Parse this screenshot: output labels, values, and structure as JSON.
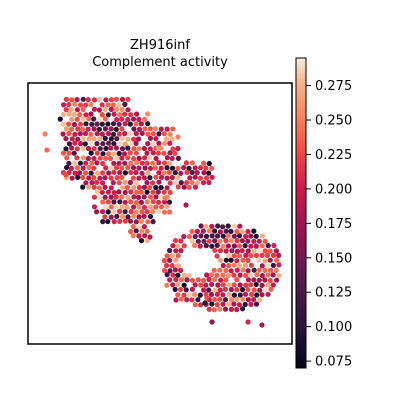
{
  "chart_data": {
    "type": "scatter",
    "title": "ZH916inf",
    "subtitle": "Complement activity",
    "xlabel": "",
    "ylabel": "",
    "colormap": "rocket",
    "color_range": [
      0.07,
      0.295
    ],
    "colorbar_ticks": [
      "0.275",
      "0.250",
      "0.225",
      "0.200",
      "0.175",
      "0.150",
      "0.125",
      "0.100",
      "0.075"
    ],
    "colorbar_tick_values": [
      0.275,
      0.25,
      0.225,
      0.2,
      0.175,
      0.15,
      0.125,
      0.1,
      0.075
    ],
    "axis_ticks_visible": false,
    "grid": false,
    "legend": "colorbar-right",
    "regions": [
      {
        "name": "upper-left tissue section",
        "x_range": [
          0.14,
          0.6
        ],
        "y_range": [
          0.05,
          0.6
        ],
        "mean_value": 0.2
      },
      {
        "name": "lower-right tissue section",
        "x_range": [
          0.5,
          0.96
        ],
        "y_range": [
          0.54,
          0.98
        ],
        "mean_value": 0.21
      }
    ]
  }
}
